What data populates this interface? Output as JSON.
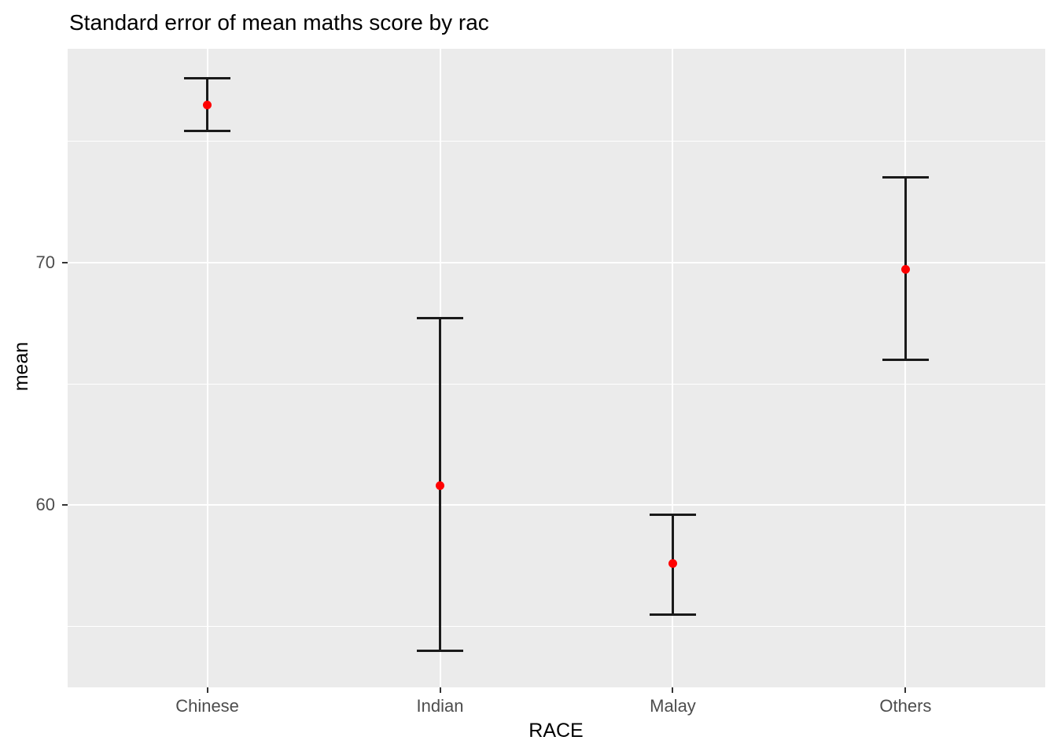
{
  "chart_data": {
    "type": "errorbar",
    "title": "Standard error of mean maths score by rac",
    "xlabel": "RACE",
    "ylabel": "mean",
    "categories": [
      "Chinese",
      "Indian",
      "Malay",
      "Others"
    ],
    "series": [
      {
        "category": "Chinese",
        "mean": 76.5,
        "lower": 75.4,
        "upper": 77.6
      },
      {
        "category": "Indian",
        "mean": 60.8,
        "lower": 54.0,
        "upper": 67.7
      },
      {
        "category": "Malay",
        "mean": 57.6,
        "lower": 55.5,
        "upper": 59.6
      },
      {
        "category": "Others",
        "mean": 69.7,
        "lower": 66.0,
        "upper": 73.5
      }
    ],
    "ylim": [
      52.5,
      78.8
    ],
    "y_major_ticks": [
      60,
      70
    ],
    "y_minor_gridlines": [
      55,
      65,
      75
    ],
    "x_expansion_units": 0.6,
    "grid": "major+minor",
    "legend_position": "none",
    "colors": {
      "point": "#FF0000",
      "errorbar": "#1A1A1A",
      "panel_background": "#EBEBEB",
      "gridline": "#FFFFFF",
      "axis_text": "#4D4D4D",
      "tick_mark": "#333333",
      "title_text": "#000000"
    },
    "geometry": {
      "point_diameter": 11,
      "errorbar_line_width": 3,
      "errorbar_cap_width": 59,
      "tick_length": 7
    }
  }
}
